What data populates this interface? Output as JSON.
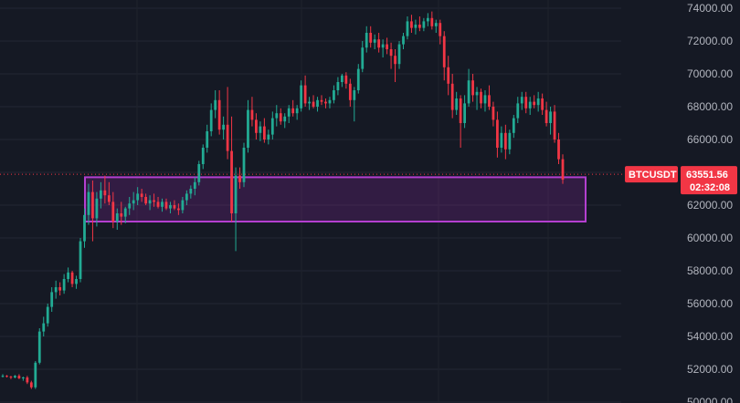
{
  "chart_data": {
    "type": "candlestick",
    "symbol": "BTCUSDT",
    "last_price": "63551.56",
    "countdown": "02:32:08",
    "ylim": [
      50000,
      74200
    ],
    "y_ticks": [
      "74000.00",
      "72000.00",
      "70000.00",
      "68000.00",
      "66000.00",
      "64000.00",
      "62000.00",
      "60000.00",
      "58000.00",
      "56000.00",
      "54000.00",
      "52000.00",
      "50000.00"
    ],
    "zone": {
      "low": 61000,
      "high": 63700
    },
    "candles": [
      [
        51600,
        51700,
        51500,
        51600
      ],
      [
        51600,
        51650,
        51500,
        51550
      ],
      [
        51550,
        51600,
        51400,
        51500
      ],
      [
        51500,
        51650,
        51450,
        51600
      ],
      [
        51600,
        51700,
        51400,
        51450
      ],
      [
        51450,
        51550,
        51300,
        51500
      ],
      [
        51500,
        51600,
        51100,
        51200
      ],
      [
        51200,
        51300,
        50800,
        50900
      ],
      [
        50900,
        52500,
        50800,
        52400
      ],
      [
        52400,
        54500,
        52300,
        54300
      ],
      [
        54300,
        55200,
        54000,
        54800
      ],
      [
        54800,
        56000,
        54600,
        55800
      ],
      [
        55800,
        57000,
        55500,
        56700
      ],
      [
        56700,
        57400,
        56300,
        57000
      ],
      [
        57000,
        57300,
        56500,
        56800
      ],
      [
        56800,
        57800,
        56600,
        57500
      ],
      [
        57500,
        58200,
        57300,
        57900
      ],
      [
        57900,
        58000,
        57000,
        57200
      ],
      [
        57200,
        57700,
        56900,
        57500
      ],
      [
        57500,
        60000,
        57300,
        59800
      ],
      [
        59800,
        61800,
        59400,
        61400
      ],
      [
        61400,
        63300,
        60800,
        62800
      ],
      [
        62800,
        63500,
        59800,
        61200
      ],
      [
        61200,
        62800,
        60700,
        62400
      ],
      [
        62400,
        63400,
        61800,
        62900
      ],
      [
        62900,
        63800,
        62100,
        62600
      ],
      [
        62600,
        63400,
        62000,
        62200
      ],
      [
        62200,
        62800,
        60600,
        61000
      ],
      [
        61000,
        61800,
        60500,
        61500
      ],
      [
        61500,
        62200,
        60800,
        61300
      ],
      [
        61300,
        61900,
        60900,
        61800
      ],
      [
        61800,
        62500,
        61400,
        62100
      ],
      [
        62100,
        62800,
        61700,
        62300
      ],
      [
        62300,
        63100,
        62000,
        62700
      ],
      [
        62700,
        63000,
        62200,
        62500
      ],
      [
        62500,
        62700,
        62000,
        62100
      ],
      [
        62100,
        62600,
        61700,
        62300
      ],
      [
        62300,
        62700,
        61900,
        62200
      ],
      [
        62200,
        62500,
        61800,
        61900
      ],
      [
        61900,
        62400,
        61600,
        62200
      ],
      [
        62200,
        62400,
        61700,
        61800
      ],
      [
        61800,
        62200,
        61500,
        62000
      ],
      [
        62000,
        62300,
        61700,
        61800
      ],
      [
        61800,
        62100,
        61400,
        61700
      ],
      [
        61700,
        62500,
        61500,
        62300
      ],
      [
        62300,
        62900,
        62000,
        62700
      ],
      [
        62700,
        63200,
        62400,
        63000
      ],
      [
        63000,
        63700,
        62600,
        63400
      ],
      [
        63400,
        64700,
        63200,
        64500
      ],
      [
        64500,
        65700,
        64200,
        65500
      ],
      [
        65500,
        66900,
        65200,
        66500
      ],
      [
        66500,
        68200,
        66200,
        67800
      ],
      [
        67800,
        69000,
        67300,
        68400
      ],
      [
        68400,
        69000,
        66300,
        66600
      ],
      [
        66600,
        67400,
        66000,
        66900
      ],
      [
        66900,
        69200,
        64800,
        65300
      ],
      [
        65300,
        67400,
        61000,
        61500
      ],
      [
        61500,
        64300,
        59200,
        63800
      ],
      [
        63800,
        64300,
        63000,
        63400
      ],
      [
        63400,
        65800,
        63100,
        65500
      ],
      [
        65500,
        68400,
        65200,
        67800
      ],
      [
        67800,
        68600,
        66800,
        67200
      ],
      [
        67200,
        67600,
        66000,
        66400
      ],
      [
        66400,
        67100,
        65900,
        66800
      ],
      [
        66800,
        67300,
        65800,
        66000
      ],
      [
        66000,
        66600,
        65700,
        66300
      ],
      [
        66300,
        67700,
        66000,
        67300
      ],
      [
        67300,
        68100,
        66800,
        67600
      ],
      [
        67600,
        67900,
        66900,
        67100
      ],
      [
        67100,
        67600,
        66700,
        67400
      ],
      [
        67400,
        68100,
        67000,
        67900
      ],
      [
        67900,
        68400,
        67400,
        67600
      ],
      [
        67600,
        68100,
        67200,
        67900
      ],
      [
        67900,
        69600,
        67700,
        69300
      ],
      [
        69300,
        69900,
        68000,
        68200
      ],
      [
        68200,
        68600,
        67800,
        68300
      ],
      [
        68300,
        68700,
        67900,
        68000
      ],
      [
        68000,
        68600,
        67700,
        68400
      ],
      [
        68400,
        68700,
        68100,
        68300
      ],
      [
        68300,
        68500,
        67900,
        68200
      ],
      [
        68200,
        68600,
        67900,
        68400
      ],
      [
        68400,
        69300,
        68200,
        69000
      ],
      [
        69000,
        69800,
        68700,
        69500
      ],
      [
        69500,
        70000,
        69200,
        69900
      ],
      [
        69900,
        70100,
        69100,
        69400
      ],
      [
        69400,
        69700,
        68000,
        68400
      ],
      [
        68400,
        69200,
        67100,
        69000
      ],
      [
        69000,
        70600,
        68800,
        70300
      ],
      [
        70300,
        72000,
        70100,
        71600
      ],
      [
        71600,
        72900,
        71300,
        72500
      ],
      [
        72500,
        72900,
        71600,
        71900
      ],
      [
        71900,
        72400,
        71500,
        72100
      ],
      [
        72100,
        72500,
        71300,
        71600
      ],
      [
        71600,
        72100,
        71000,
        71800
      ],
      [
        71800,
        72200,
        71200,
        71500
      ],
      [
        71500,
        71900,
        70300,
        71100
      ],
      [
        71100,
        71500,
        69500,
        70600
      ],
      [
        70600,
        72000,
        70300,
        71800
      ],
      [
        71800,
        72500,
        71500,
        72300
      ],
      [
        72300,
        73500,
        72100,
        73200
      ],
      [
        73200,
        73600,
        72500,
        72800
      ],
      [
        72800,
        73300,
        72400,
        73000
      ],
      [
        73000,
        73500,
        72600,
        72800
      ],
      [
        72800,
        73400,
        72600,
        73200
      ],
      [
        73200,
        73700,
        72900,
        73400
      ],
      [
        73400,
        73800,
        72700,
        72900
      ],
      [
        72900,
        73300,
        72500,
        73100
      ],
      [
        73100,
        73300,
        71800,
        72300
      ],
      [
        72300,
        72600,
        69600,
        70400
      ],
      [
        70400,
        71100,
        68700,
        69400
      ],
      [
        69400,
        70000,
        67300,
        67800
      ],
      [
        67800,
        68900,
        67500,
        68500
      ],
      [
        68500,
        68700,
        65500,
        67000
      ],
      [
        67000,
        68700,
        66700,
        68200
      ],
      [
        68200,
        70300,
        68000,
        69600
      ],
      [
        69600,
        70000,
        68300,
        68700
      ],
      [
        68700,
        69200,
        67800,
        68900
      ],
      [
        68900,
        69100,
        67900,
        68200
      ],
      [
        68200,
        69000,
        67700,
        68700
      ],
      [
        68700,
        69300,
        67800,
        68000
      ],
      [
        68000,
        68300,
        66800,
        67200
      ],
      [
        67200,
        67700,
        64900,
        65500
      ],
      [
        65500,
        66800,
        65200,
        66400
      ],
      [
        66400,
        66900,
        64800,
        65400
      ],
      [
        65400,
        66600,
        65100,
        66400
      ],
      [
        66400,
        67500,
        66100,
        67300
      ],
      [
        67300,
        68600,
        67000,
        68200
      ],
      [
        68200,
        68900,
        67800,
        68600
      ],
      [
        68600,
        68900,
        67600,
        67900
      ],
      [
        67900,
        68600,
        67500,
        68300
      ],
      [
        68300,
        68700,
        67900,
        68100
      ],
      [
        68100,
        68900,
        67700,
        68500
      ],
      [
        68500,
        68800,
        67500,
        67800
      ],
      [
        67800,
        68300,
        66800,
        67000
      ],
      [
        67000,
        68000,
        66300,
        67700
      ],
      [
        67700,
        68100,
        65800,
        66000
      ],
      [
        66000,
        66400,
        64500,
        64800
      ],
      [
        64800,
        65100,
        63300,
        63551.56
      ]
    ]
  }
}
